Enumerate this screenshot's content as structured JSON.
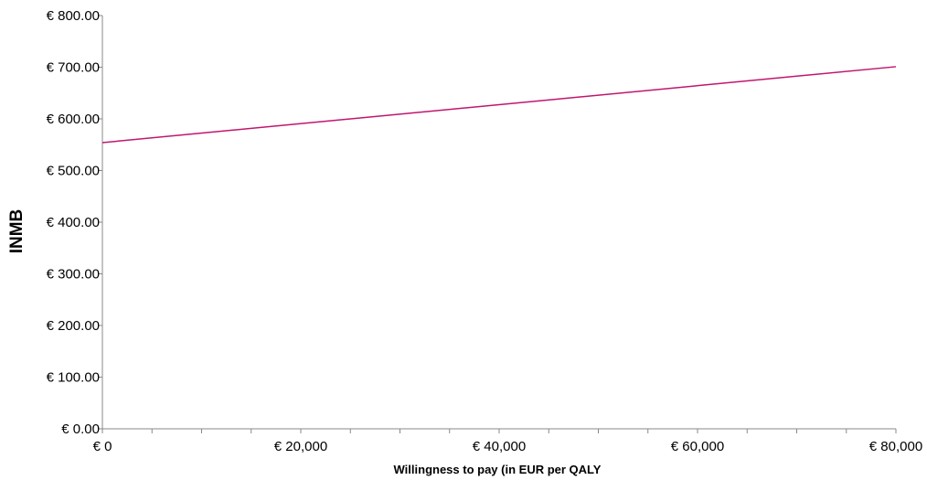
{
  "chart_data": {
    "type": "line",
    "xlabel": "Willingness to pay (in EUR per QALY",
    "ylabel": "INMB",
    "xlim": [
      0,
      80000
    ],
    "ylim": [
      0,
      800
    ],
    "x_ticks": [
      {
        "value": 0,
        "label": "€ 0"
      },
      {
        "value": 20000,
        "label": "€ 20,000"
      },
      {
        "value": 40000,
        "label": "€ 40,000"
      },
      {
        "value": 60000,
        "label": "€ 60,000"
      },
      {
        "value": 80000,
        "label": "€ 80,000"
      }
    ],
    "x_minor_step": 5000,
    "y_ticks": [
      {
        "value": 0,
        "label": "€ 0.00"
      },
      {
        "value": 100,
        "label": "€ 100.00"
      },
      {
        "value": 200,
        "label": "€ 200.00"
      },
      {
        "value": 300,
        "label": "€ 300.00"
      },
      {
        "value": 400,
        "label": "€ 400.00"
      },
      {
        "value": 500,
        "label": "€ 500.00"
      },
      {
        "value": 600,
        "label": "€ 600.00"
      },
      {
        "value": 700,
        "label": "€ 700.00"
      },
      {
        "value": 800,
        "label": "€ 800.00"
      }
    ],
    "grid": false,
    "legend": "none",
    "series": [
      {
        "color": "#c0166e",
        "x": [
          0,
          80000
        ],
        "y": [
          554,
          701
        ]
      }
    ]
  }
}
